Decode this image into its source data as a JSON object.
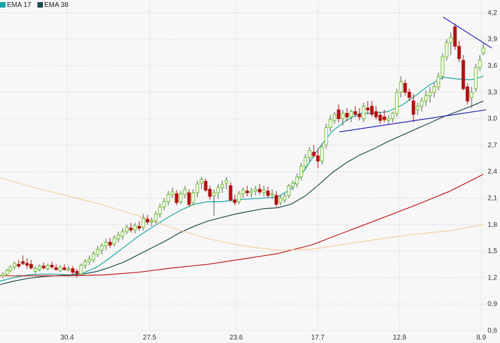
{
  "legend": [
    {
      "label": "EMA 17",
      "color": "#18a5a5"
    },
    {
      "label": "EMA 38",
      "color": "#1e4f4a"
    }
  ],
  "chart_data": {
    "type": "candlestick",
    "x_tick_labels": [
      "30.4",
      "27.5",
      "23.6",
      "17.7",
      "12.8",
      "8.9"
    ],
    "y_ticks": [
      0.6,
      0.9,
      1.2,
      1.5,
      1.8,
      2.1,
      2.4,
      2.7,
      3.0,
      3.3,
      3.6,
      3.9,
      4.2
    ],
    "y_tick_labels": [
      "0,6",
      "0,9",
      "1,2",
      "1,5",
      "1,8",
      "2,1",
      "2,4",
      "2,7",
      "3,0",
      "3,3",
      "3,6",
      "3,9",
      "4,2"
    ],
    "ylim": [
      0.6,
      4.25
    ],
    "grid": true,
    "colors": {
      "up": "#6ec028",
      "down": "#b01010",
      "ema17": "#18a5a5",
      "ema38": "#1e4f4a",
      "ma_red": "#c01818",
      "ma_orange": "#f4c88c",
      "trendline": "#2222bb",
      "grid": "#c8c8c8"
    },
    "series": [
      {
        "name": "EMA 17",
        "x": [
          0,
          20,
          40,
          60,
          80,
          100,
          120,
          140,
          160,
          180,
          200,
          220,
          240,
          260,
          280,
          300,
          320,
          340,
          360,
          380,
          400,
          420,
          440,
          460,
          480,
          500,
          520,
          540,
          560,
          580,
          600,
          620,
          640,
          660,
          680,
          698
        ],
        "values": [
          1.16,
          1.2,
          1.23,
          1.24,
          1.24,
          1.23,
          1.25,
          1.32,
          1.43,
          1.55,
          1.67,
          1.77,
          1.87,
          1.96,
          2.03,
          2.06,
          2.06,
          2.08,
          2.09,
          2.1,
          2.11,
          2.2,
          2.42,
          2.66,
          2.86,
          2.98,
          3.06,
          3.06,
          3.08,
          3.15,
          3.26,
          3.38,
          3.47,
          3.45,
          3.44,
          3.48
        ]
      },
      {
        "name": "EMA 38",
        "x": [
          0,
          20,
          40,
          60,
          80,
          100,
          120,
          140,
          160,
          180,
          200,
          220,
          240,
          260,
          280,
          300,
          320,
          340,
          360,
          380,
          400,
          420,
          440,
          460,
          480,
          500,
          520,
          540,
          560,
          580,
          600,
          620,
          640,
          660,
          680,
          698
        ],
        "values": [
          1.12,
          1.16,
          1.19,
          1.21,
          1.22,
          1.23,
          1.24,
          1.27,
          1.32,
          1.38,
          1.46,
          1.54,
          1.62,
          1.71,
          1.78,
          1.84,
          1.88,
          1.92,
          1.95,
          1.98,
          1.99,
          2.03,
          2.12,
          2.25,
          2.39,
          2.5,
          2.59,
          2.66,
          2.74,
          2.81,
          2.88,
          2.95,
          3.02,
          3.08,
          3.14,
          3.2
        ]
      },
      {
        "x": [
          0,
          50,
          100,
          150,
          200,
          250,
          300,
          350,
          400,
          450,
          500,
          550,
          600,
          650,
          698
        ],
        "values": [
          1.22,
          1.22,
          1.22,
          1.23,
          1.26,
          1.31,
          1.35,
          1.41,
          1.47,
          1.57,
          1.72,
          1.87,
          2.02,
          2.18,
          2.37
        ]
      },
      {
        "x": [
          0,
          50,
          100,
          150,
          200,
          250,
          300,
          350,
          400,
          450,
          500,
          550,
          600,
          650,
          698
        ],
        "values": [
          2.33,
          2.22,
          2.12,
          2.02,
          1.9,
          1.76,
          1.64,
          1.56,
          1.51,
          1.52,
          1.58,
          1.64,
          1.69,
          1.73,
          1.8
        ]
      }
    ],
    "candles": [
      [
        4,
        1.22,
        1.26,
        1.19,
        1.24
      ],
      [
        10,
        1.24,
        1.3,
        1.22,
        1.28
      ],
      [
        15,
        1.28,
        1.34,
        1.26,
        1.32
      ],
      [
        21,
        1.32,
        1.38,
        1.29,
        1.36
      ],
      [
        27,
        1.35,
        1.4,
        1.31,
        1.33
      ],
      [
        33,
        1.38,
        1.45,
        1.34,
        1.36
      ],
      [
        39,
        1.36,
        1.42,
        1.3,
        1.34
      ],
      [
        45,
        1.35,
        1.4,
        1.29,
        1.31
      ],
      [
        51,
        1.27,
        1.33,
        1.24,
        1.3
      ],
      [
        57,
        1.29,
        1.35,
        1.27,
        1.33
      ],
      [
        63,
        1.33,
        1.37,
        1.29,
        1.31
      ],
      [
        69,
        1.3,
        1.36,
        1.28,
        1.34
      ],
      [
        75,
        1.34,
        1.38,
        1.3,
        1.32
      ],
      [
        81,
        1.31,
        1.35,
        1.28,
        1.29
      ],
      [
        87,
        1.28,
        1.34,
        1.26,
        1.32
      ],
      [
        93,
        1.31,
        1.35,
        1.28,
        1.29
      ],
      [
        99,
        1.29,
        1.33,
        1.27,
        1.3
      ],
      [
        105,
        1.3,
        1.33,
        1.24,
        1.26
      ],
      [
        111,
        1.27,
        1.3,
        1.2,
        1.25
      ],
      [
        117,
        1.24,
        1.36,
        1.22,
        1.34
      ],
      [
        123,
        1.34,
        1.41,
        1.3,
        1.38
      ],
      [
        129,
        1.38,
        1.45,
        1.34,
        1.41
      ],
      [
        135,
        1.4,
        1.5,
        1.37,
        1.47
      ],
      [
        141,
        1.46,
        1.56,
        1.43,
        1.52
      ],
      [
        147,
        1.51,
        1.59,
        1.46,
        1.56
      ],
      [
        153,
        1.56,
        1.64,
        1.51,
        1.6
      ],
      [
        159,
        1.6,
        1.65,
        1.54,
        1.57
      ],
      [
        165,
        1.58,
        1.68,
        1.55,
        1.65
      ],
      [
        171,
        1.64,
        1.72,
        1.6,
        1.68
      ],
      [
        177,
        1.67,
        1.76,
        1.63,
        1.72
      ],
      [
        183,
        1.72,
        1.8,
        1.69,
        1.77
      ],
      [
        189,
        1.76,
        1.82,
        1.71,
        1.74
      ],
      [
        195,
        1.74,
        1.82,
        1.7,
        1.79
      ],
      [
        201,
        1.78,
        1.84,
        1.73,
        1.76
      ],
      [
        207,
        1.77,
        1.92,
        1.73,
        1.87
      ],
      [
        213,
        1.86,
        1.91,
        1.8,
        1.83
      ],
      [
        219,
        1.83,
        1.88,
        1.78,
        1.84
      ],
      [
        225,
        1.84,
        1.95,
        1.81,
        1.92
      ],
      [
        231,
        1.92,
        2.04,
        1.88,
        2.0
      ],
      [
        237,
        2.0,
        2.1,
        1.96,
        2.06
      ],
      [
        243,
        2.06,
        2.18,
        2.02,
        2.14
      ],
      [
        249,
        2.14,
        2.22,
        2.1,
        2.17
      ],
      [
        255,
        2.15,
        2.19,
        2.02,
        2.05
      ],
      [
        261,
        2.06,
        2.18,
        2.03,
        2.15
      ],
      [
        267,
        2.14,
        2.24,
        2.1,
        2.2
      ],
      [
        273,
        2.16,
        2.2,
        2.0,
        2.03
      ],
      [
        279,
        2.05,
        2.2,
        2.02,
        2.16
      ],
      [
        285,
        2.16,
        2.3,
        2.11,
        2.26
      ],
      [
        291,
        2.27,
        2.34,
        2.2,
        2.31
      ],
      [
        297,
        2.29,
        2.32,
        2.17,
        2.19
      ],
      [
        303,
        2.2,
        2.24,
        2.08,
        2.12
      ],
      [
        309,
        2.13,
        2.2,
        1.9,
        2.16
      ],
      [
        315,
        2.16,
        2.26,
        2.09,
        2.22
      ],
      [
        321,
        2.22,
        2.3,
        2.16,
        2.25
      ],
      [
        327,
        2.27,
        2.34,
        2.2,
        2.3
      ],
      [
        333,
        2.24,
        2.28,
        2.06,
        2.08
      ],
      [
        339,
        2.08,
        2.14,
        2.02,
        2.05
      ],
      [
        345,
        2.06,
        2.18,
        2.03,
        2.15
      ],
      [
        351,
        2.15,
        2.22,
        2.1,
        2.19
      ],
      [
        357,
        2.18,
        2.24,
        2.12,
        2.16
      ],
      [
        363,
        2.16,
        2.22,
        2.11,
        2.18
      ],
      [
        369,
        2.18,
        2.24,
        2.13,
        2.2
      ],
      [
        375,
        2.2,
        2.26,
        2.14,
        2.17
      ],
      [
        381,
        2.16,
        2.24,
        2.12,
        2.19
      ],
      [
        387,
        2.18,
        2.23,
        2.1,
        2.13
      ],
      [
        393,
        2.14,
        2.2,
        2.09,
        2.15
      ],
      [
        399,
        2.13,
        2.18,
        2.0,
        2.03
      ],
      [
        405,
        2.05,
        2.14,
        2.02,
        2.1
      ],
      [
        411,
        2.08,
        2.16,
        2.05,
        2.12
      ],
      [
        417,
        2.13,
        2.26,
        2.1,
        2.24
      ],
      [
        423,
        2.23,
        2.3,
        2.19,
        2.27
      ],
      [
        429,
        2.26,
        2.38,
        2.22,
        2.34
      ],
      [
        435,
        2.34,
        2.5,
        2.3,
        2.46
      ],
      [
        441,
        2.46,
        2.6,
        2.42,
        2.56
      ],
      [
        447,
        2.56,
        2.68,
        2.5,
        2.64
      ],
      [
        453,
        2.62,
        2.7,
        2.56,
        2.58
      ],
      [
        459,
        2.58,
        2.66,
        2.44,
        2.52
      ],
      [
        465,
        2.52,
        2.72,
        2.48,
        2.68
      ],
      [
        471,
        2.7,
        2.94,
        2.66,
        2.9
      ],
      [
        477,
        2.9,
        3.04,
        2.85,
        2.99
      ],
      [
        483,
        2.98,
        3.08,
        2.94,
        3.05
      ],
      [
        489,
        3.1,
        3.16,
        2.96,
        3.0
      ],
      [
        495,
        3.0,
        3.1,
        2.92,
        3.06
      ],
      [
        501,
        3.06,
        3.12,
        2.97,
        3.02
      ],
      [
        507,
        3.02,
        3.1,
        2.96,
        3.08
      ],
      [
        513,
        3.08,
        3.14,
        3.02,
        3.05
      ],
      [
        519,
        3.05,
        3.12,
        2.98,
        3.02
      ],
      [
        525,
        3.0,
        3.18,
        2.96,
        3.14
      ],
      [
        531,
        3.12,
        3.2,
        3.05,
        3.1
      ],
      [
        537,
        3.14,
        3.2,
        3.02,
        3.05
      ],
      [
        543,
        3.08,
        3.14,
        2.99,
        3.02
      ],
      [
        549,
        3.04,
        3.08,
        2.94,
        2.98
      ],
      [
        555,
        3.02,
        3.1,
        2.96,
        2.99
      ],
      [
        561,
        2.98,
        3.04,
        2.94,
        3.0
      ],
      [
        567,
        3.0,
        3.08,
        2.96,
        3.06
      ],
      [
        573,
        3.06,
        3.34,
        3.02,
        3.3
      ],
      [
        579,
        3.3,
        3.48,
        3.24,
        3.42
      ],
      [
        585,
        3.4,
        3.44,
        3.26,
        3.3
      ],
      [
        591,
        3.3,
        3.34,
        3.2,
        3.24
      ],
      [
        597,
        3.2,
        3.28,
        2.96,
        3.05
      ],
      [
        603,
        3.1,
        3.18,
        3.04,
        3.14
      ],
      [
        609,
        3.14,
        3.24,
        3.08,
        3.2
      ],
      [
        615,
        3.2,
        3.32,
        3.14,
        3.26
      ],
      [
        621,
        3.26,
        3.36,
        3.18,
        3.3
      ],
      [
        627,
        3.3,
        3.4,
        3.24,
        3.36
      ],
      [
        633,
        3.36,
        3.52,
        3.32,
        3.48
      ],
      [
        639,
        3.48,
        3.74,
        3.44,
        3.7
      ],
      [
        645,
        3.7,
        3.9,
        3.66,
        3.86
      ],
      [
        651,
        3.86,
        3.98,
        3.72,
        3.92
      ],
      [
        657,
        4.04,
        4.08,
        3.78,
        3.82
      ],
      [
        663,
        3.82,
        3.88,
        3.64,
        3.68
      ],
      [
        669,
        3.66,
        3.72,
        3.32,
        3.34
      ],
      [
        675,
        3.36,
        3.4,
        3.16,
        3.2
      ],
      [
        681,
        3.24,
        3.36,
        3.12,
        3.3
      ],
      [
        687,
        3.34,
        3.62,
        3.3,
        3.58
      ],
      [
        693,
        3.58,
        3.72,
        3.54,
        3.66
      ],
      [
        698,
        3.74,
        3.86,
        3.72,
        3.8
      ]
    ],
    "trendlines": [
      {
        "x": [
          490,
          702
        ],
        "values": [
          2.85,
          3.1
        ]
      },
      {
        "x": [
          640,
          710
        ],
        "values": [
          4.15,
          3.8
        ]
      }
    ]
  }
}
